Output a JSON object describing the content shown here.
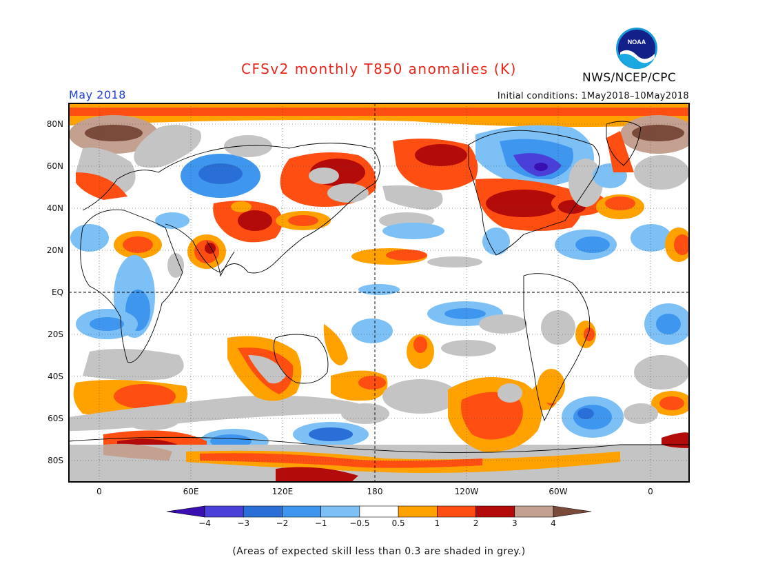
{
  "title": "CFSv2 monthly T850 anomalies (K)",
  "month": "May 2018",
  "initial_conditions": "Initial conditions: 1May2018–10May2018",
  "agency": "NWS/NCEP/CPC",
  "logo_text": "NOAA",
  "footnote": "(Areas of expected skill less than 0.3 are shaded in grey.)",
  "latitude_labels": [
    "80N",
    "60N",
    "40N",
    "20N",
    "EQ",
    "20S",
    "40S",
    "60S",
    "80S"
  ],
  "longitude_labels": [
    "0",
    "60E",
    "120E",
    "180",
    "120W",
    "60W",
    "0"
  ],
  "colorbar": {
    "labels": [
      "−4",
      "−3",
      "−2",
      "−1",
      "−0.5",
      "0.5",
      "1",
      "2",
      "3",
      "4"
    ],
    "colors": [
      "#3a0fb2",
      "#4a3fd8",
      "#2a6fd8",
      "#3f96ee",
      "#7cc0f5",
      "#ffffff",
      "#ffa200",
      "#ff4e12",
      "#b30a0a",
      "#c4a090",
      "#7a4a3a"
    ]
  },
  "colors": {
    "title": "#e8261a",
    "month": "#1d3fd8",
    "skill_grey": "#c4c4c4"
  }
}
